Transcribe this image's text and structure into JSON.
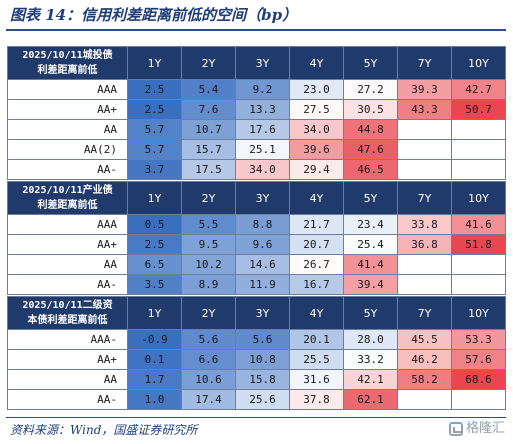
{
  "title": "图表 14：信用利差距离前低的空间（bp）",
  "headers": [
    "1Y",
    "2Y",
    "3Y",
    "4Y",
    "5Y",
    "7Y",
    "10Y"
  ],
  "tables": [
    {
      "label_line1": "2025/10/11城投债",
      "label_line2": "利差距离前低",
      "rows": [
        {
          "rating": "AAA",
          "values": [
            "2.5",
            "5.4",
            "9.2",
            "23.0",
            "27.2",
            "39.3",
            "42.7"
          ]
        },
        {
          "rating": "AA+",
          "values": [
            "2.5",
            "7.6",
            "13.3",
            "27.5",
            "30.5",
            "43.3",
            "50.7"
          ]
        },
        {
          "rating": "AA",
          "values": [
            "5.7",
            "10.7",
            "17.6",
            "34.0",
            "44.8",
            "",
            ""
          ]
        },
        {
          "rating": "AA(2)",
          "values": [
            "5.7",
            "15.7",
            "25.1",
            "39.6",
            "47.6",
            "",
            ""
          ]
        },
        {
          "rating": "AA-",
          "values": [
            "3.7",
            "17.5",
            "34.0",
            "29.4",
            "46.5",
            "",
            ""
          ]
        }
      ]
    },
    {
      "label_line1": "2025/10/11产业债",
      "label_line2": "利差距离前低",
      "rows": [
        {
          "rating": "AAA",
          "values": [
            "0.5",
            "5.5",
            "8.8",
            "21.7",
            "23.4",
            "33.8",
            "41.6"
          ]
        },
        {
          "rating": "AA+",
          "values": [
            "2.5",
            "9.5",
            "9.6",
            "20.7",
            "25.4",
            "36.8",
            "51.8"
          ]
        },
        {
          "rating": "AA",
          "values": [
            "6.5",
            "10.2",
            "14.6",
            "26.7",
            "41.4",
            "",
            ""
          ]
        },
        {
          "rating": "AA-",
          "values": [
            "3.5",
            "8.9",
            "11.9",
            "16.7",
            "39.4",
            "",
            ""
          ]
        }
      ]
    },
    {
      "label_line1": "2025/10/11二级资",
      "label_line2": "本债利差距离前低",
      "rows": [
        {
          "rating": "AAA-",
          "values": [
            "-0.9",
            "5.6",
            "5.6",
            "20.1",
            "28.0",
            "45.5",
            "53.3"
          ]
        },
        {
          "rating": "AA+",
          "values": [
            "0.1",
            "6.6",
            "10.8",
            "25.5",
            "33.2",
            "46.2",
            "57.6"
          ]
        },
        {
          "rating": "AA",
          "values": [
            "1.7",
            "10.6",
            "15.8",
            "31.6",
            "42.1",
            "58.2",
            "68.6"
          ]
        },
        {
          "rating": "AA-",
          "values": [
            "1.0",
            "17.4",
            "25.6",
            "37.8",
            "62.1",
            "",
            ""
          ]
        }
      ]
    }
  ],
  "footer": "资料来源：Wind，国盛证券研究所",
  "watermark": "格隆汇",
  "colors": {
    "header_bg": "#1f3a6b",
    "low": "#3a6fc0",
    "mid": "#ffffff",
    "high": "#e8474f",
    "title": "#1f3e7a"
  }
}
